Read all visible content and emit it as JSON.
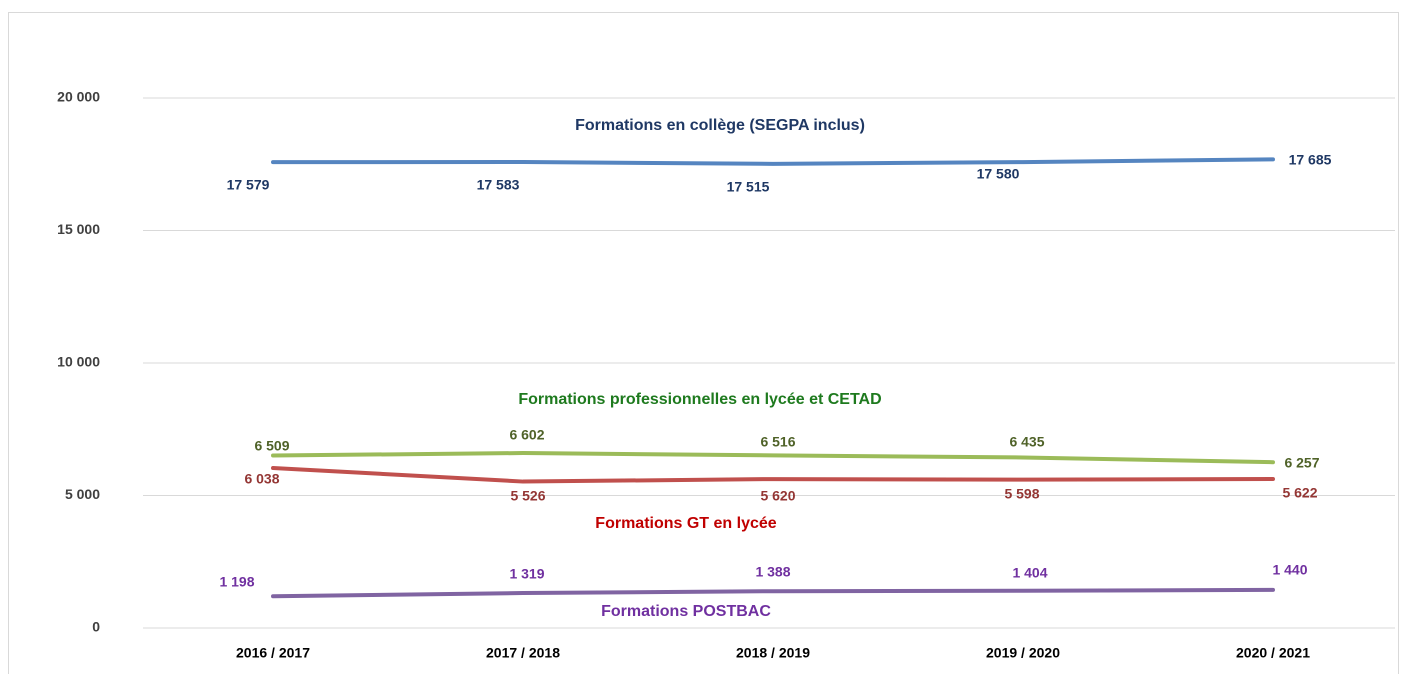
{
  "chart_data": {
    "type": "line",
    "categories": [
      "2016 / 2017",
      "2017 / 2018",
      "2018 / 2019",
      "2019 / 2020",
      "2020 / 2021"
    ],
    "series": [
      {
        "name": "Formations en collège (SEGPA inclus)",
        "color": "#5585c0",
        "values": [
          17579,
          17583,
          17515,
          17580,
          17685
        ],
        "value_labels": [
          "17 579",
          "17 583",
          "17 515",
          "17 580",
          "17 685"
        ]
      },
      {
        "name": "Formations professionnelles en lycée et CETAD",
        "color": "#9bbb59",
        "values": [
          6509,
          6602,
          6516,
          6435,
          6257
        ],
        "value_labels": [
          "6 509",
          "6 602",
          "6 516",
          "6 435",
          "6 257"
        ]
      },
      {
        "name": "Formations GT en lycée",
        "color": "#c0504d",
        "values": [
          6038,
          5526,
          5620,
          5598,
          5622
        ],
        "value_labels": [
          "6 038",
          "5 526",
          "5 620",
          "5 598",
          "5 622"
        ]
      },
      {
        "name": "Formations POSTBAC",
        "color": "#8064a2",
        "values": [
          1198,
          1319,
          1388,
          1404,
          1440
        ],
        "value_labels": [
          "1 198",
          "1 319",
          "1 388",
          "1 404",
          "1 440"
        ]
      }
    ],
    "ylim": [
      0,
      20000
    ],
    "yticks": [
      0,
      {
        "value": 5000,
        "label": "5 000"
      },
      {
        "value": 10000,
        "label": "10 000"
      },
      {
        "value": 15000,
        "label": "15 000"
      },
      {
        "value": 20000,
        "label": "20 000"
      }
    ],
    "grid": true
  }
}
